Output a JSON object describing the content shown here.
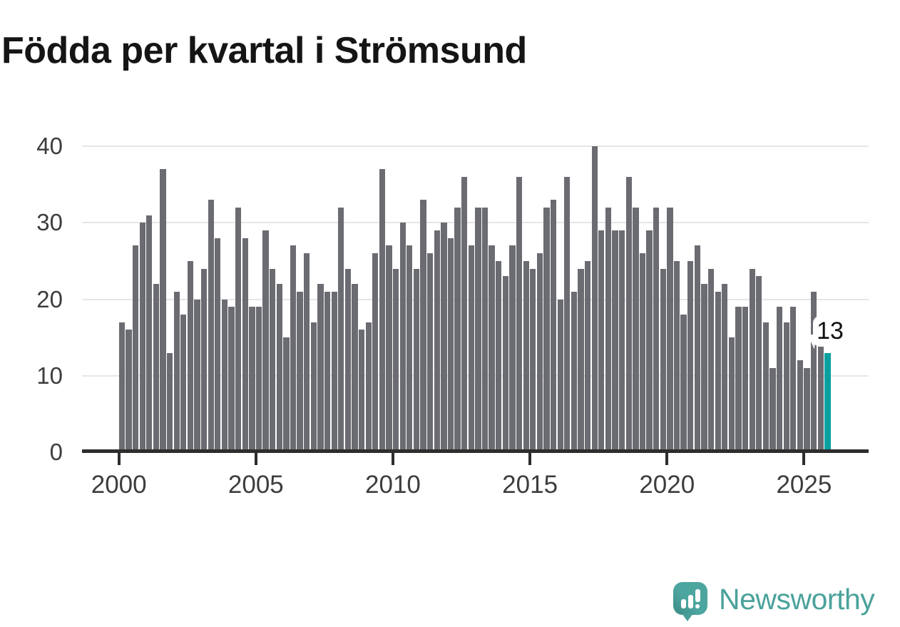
{
  "title": "Födda per kvartal i Strömsund",
  "chart_data": {
    "type": "bar",
    "title": "Födda per kvartal i Strömsund",
    "x_period": "quarter",
    "start_year": 2000,
    "start_quarter": 1,
    "quarters_per_year": 4,
    "values": [
      17,
      16,
      27,
      30,
      31,
      22,
      37,
      13,
      21,
      18,
      25,
      20,
      24,
      33,
      28,
      20,
      19,
      32,
      28,
      19,
      19,
      29,
      24,
      22,
      15,
      27,
      21,
      26,
      17,
      22,
      21,
      21,
      32,
      24,
      22,
      16,
      17,
      26,
      37,
      27,
      24,
      30,
      27,
      24,
      33,
      26,
      29,
      30,
      28,
      32,
      36,
      27,
      32,
      32,
      27,
      25,
      23,
      27,
      36,
      25,
      24,
      26,
      32,
      33,
      20,
      36,
      21,
      24,
      25,
      40,
      29,
      32,
      29,
      29,
      36,
      32,
      26,
      29,
      32,
      24,
      32,
      25,
      18,
      25,
      27,
      22,
      24,
      21,
      22,
      15,
      19,
      19,
      24,
      23,
      17,
      11,
      19,
      17,
      19,
      12,
      11,
      21,
      14,
      13
    ],
    "x_tick_years": [
      2000,
      2005,
      2010,
      2015,
      2020,
      2025
    ],
    "y_ticks": [
      0,
      10,
      20,
      30,
      40
    ],
    "ylim": [
      0,
      40
    ],
    "grid": "horizontal",
    "legend": "none",
    "bar_color": "#6b6b72",
    "highlight_color": "#0aa0a0",
    "highlight_index": 103,
    "annotation": {
      "text": "13",
      "target": "last-bar"
    }
  },
  "branding": {
    "name": "Newsworthy",
    "color": "#4aa29b",
    "icon": "newsworthy-bubble-chart-icon"
  }
}
